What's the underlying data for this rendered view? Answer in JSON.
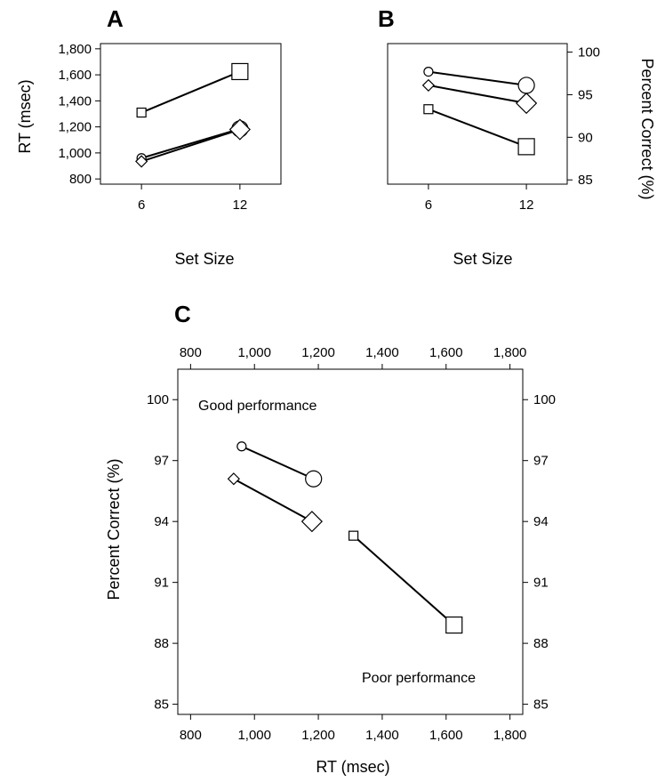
{
  "chart_data": [
    {
      "panel": "A",
      "type": "line",
      "xlabel": "Set Size",
      "ylabel": "RT (msec)",
      "x": [
        6,
        12
      ],
      "xticks": [
        "6",
        "12"
      ],
      "yticks": [
        "800",
        "1,000",
        "1,200",
        "1,400",
        "1,600",
        "1,800"
      ],
      "xlim": [
        3.5,
        14.5
      ],
      "ylim": [
        760,
        1840
      ],
      "series": [
        {
          "marker": "square",
          "values": [
            1310,
            1625
          ]
        },
        {
          "marker": "circle",
          "values": [
            960,
            1185
          ]
        },
        {
          "marker": "diamond",
          "values": [
            935,
            1180
          ]
        }
      ]
    },
    {
      "panel": "B",
      "type": "line",
      "xlabel": "Set Size",
      "ylabel": "Percent Correct (%)",
      "x": [
        6,
        12
      ],
      "xticks": [
        "6",
        "12"
      ],
      "yticks": [
        "85",
        "90",
        "95",
        "100"
      ],
      "xlim": [
        3.5,
        14.5
      ],
      "ylim": [
        84.5,
        101
      ],
      "series": [
        {
          "marker": "circle",
          "values": [
            97.7,
            96.1
          ]
        },
        {
          "marker": "diamond",
          "values": [
            96.1,
            94.0
          ]
        },
        {
          "marker": "square",
          "values": [
            93.3,
            88.9
          ]
        }
      ]
    },
    {
      "panel": "C",
      "type": "line",
      "xlabel": "RT (msec)",
      "ylabel": "Percent Correct (%)",
      "xticks": [
        "800",
        "1,000",
        "1,200",
        "1,400",
        "1,600",
        "1,800"
      ],
      "yticks": [
        "85",
        "88",
        "91",
        "94",
        "97",
        "100"
      ],
      "xlim": [
        760,
        1840
      ],
      "ylim": [
        84.5,
        101.5
      ],
      "annotations": [
        "Good performance",
        "Poor performance"
      ],
      "series": [
        {
          "marker": "circle",
          "points": [
            [
              960,
              97.7
            ],
            [
              1185,
              96.1
            ]
          ]
        },
        {
          "marker": "diamond",
          "points": [
            [
              935,
              96.1
            ],
            [
              1180,
              94.0
            ]
          ]
        },
        {
          "marker": "square",
          "points": [
            [
              1310,
              93.3
            ],
            [
              1625,
              88.9
            ]
          ]
        }
      ]
    }
  ]
}
